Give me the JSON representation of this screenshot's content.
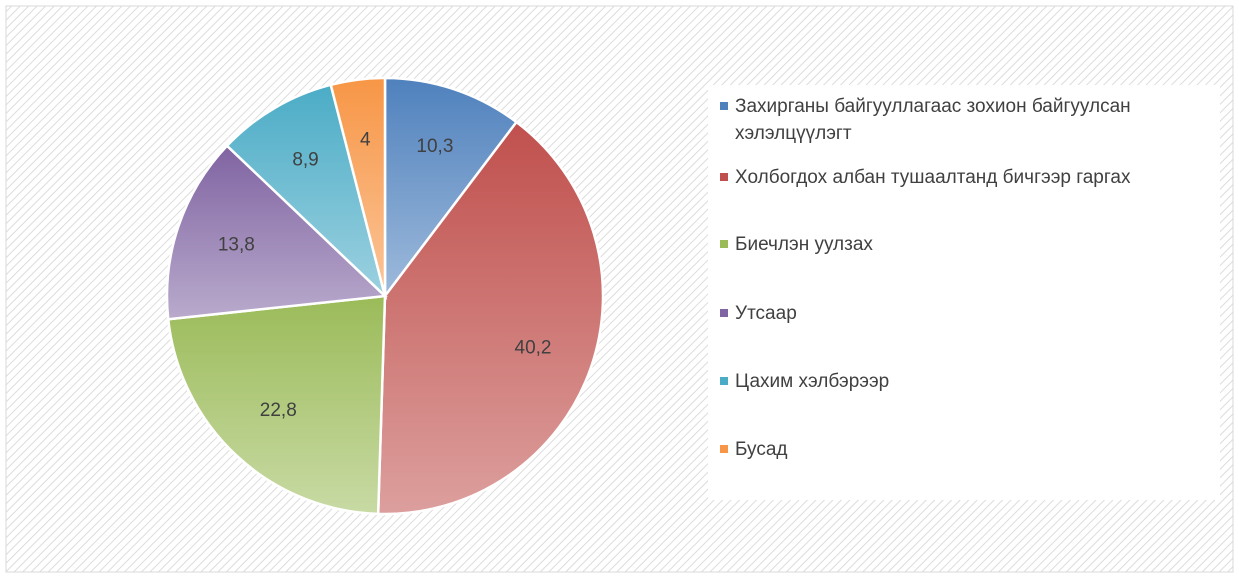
{
  "chart_data": {
    "type": "pie",
    "categories": [
      "Захирганы байгууллагаас зохион байгуулсан хэлэлцүүлэгт",
      "Холбогдох албан тушаалтанд бичгээр гаргах",
      "Биечлэн уулзах",
      "Утсаар",
      "Цахим хэлбэрээр",
      "Бусад"
    ],
    "values": [
      10.3,
      40.2,
      22.8,
      13.8,
      8.9,
      4
    ],
    "value_labels": [
      "10,3",
      "40,2",
      "22,8",
      "13,8",
      "8,9",
      "4"
    ],
    "colors": [
      "#4f81bd",
      "#c0504d",
      "#9bbb59",
      "#8064a2",
      "#4bacc6",
      "#f79646"
    ],
    "legend": "right"
  }
}
